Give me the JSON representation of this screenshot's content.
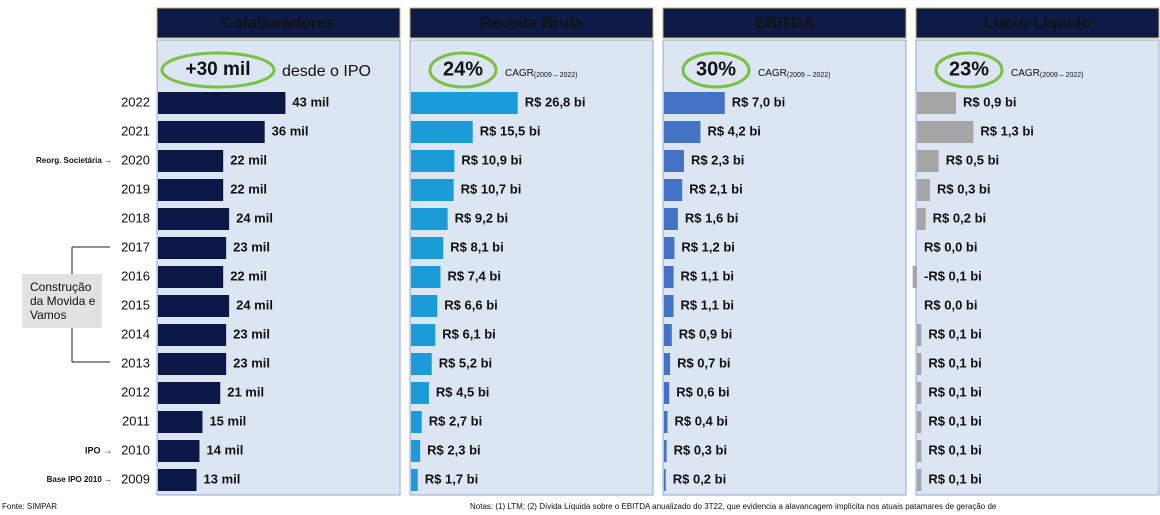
{
  "categories": [
    "2022",
    "2021",
    "2020",
    "2019",
    "2018",
    "2017",
    "2016",
    "2015",
    "2014",
    "2013",
    "2012",
    "2011",
    "2010",
    "2009"
  ],
  "chart_data": [
    {
      "type": "bar",
      "title": "Colaboradores",
      "highlight": "+30 mil",
      "highlight_note": "desde o IPO",
      "color": "#0b1846",
      "xlim": [
        0,
        82
      ],
      "values": [
        43,
        36,
        22,
        22,
        24,
        23,
        22,
        24,
        23,
        23,
        21,
        15,
        14,
        13
      ],
      "value_labels": [
        "43 mil",
        "36 mil",
        "22 mil",
        "22 mil",
        "24 mil",
        "23 mil",
        "22 mil",
        "24 mil",
        "23 mil",
        "23 mil",
        "21 mil",
        "15 mil",
        "14 mil",
        "13 mil"
      ]
    },
    {
      "type": "bar",
      "title": "Receita Bruta",
      "highlight": "24%",
      "highlight_note": "CAGR",
      "highlight_period": "(2009 – 2022)",
      "color": "#1b9bd7",
      "xlim": [
        0,
        61
      ],
      "values": [
        26.8,
        15.5,
        10.9,
        10.7,
        9.2,
        8.1,
        7.4,
        6.6,
        6.1,
        5.2,
        4.5,
        2.7,
        2.3,
        1.7
      ],
      "value_labels": [
        "R$ 26,8 bi",
        "R$ 15,5 bi",
        "R$ 10,9 bi",
        "R$ 10,7 bi",
        "R$ 9,2 bi",
        "R$ 8,1 bi",
        "R$ 7,4 bi",
        "R$ 6,6 bi",
        "R$ 6,1 bi",
        "R$ 5,2 bi",
        "R$ 4,5 bi",
        "R$ 2,7 bi",
        "R$ 2,3 bi",
        "R$ 1,7 bi"
      ]
    },
    {
      "type": "bar",
      "title": "EBITDA",
      "highlight": "30%",
      "highlight_note": "CAGR",
      "highlight_period": "(2009 – 2022)",
      "color": "#4472c4",
      "xlim": [
        0,
        28
      ],
      "values": [
        7.0,
        4.2,
        2.3,
        2.1,
        1.6,
        1.2,
        1.1,
        1.1,
        0.9,
        0.7,
        0.6,
        0.4,
        0.3,
        0.2
      ],
      "value_labels": [
        "R$ 7,0 bi",
        "R$ 4,2 bi",
        "R$ 2,3 bi",
        "R$ 2,1 bi",
        "R$ 1,6 bi",
        "R$ 1,2 bi",
        "R$ 1,1 bi",
        "R$ 1,1 bi",
        "R$ 0,9 bi",
        "R$ 0,7 bi",
        "R$ 0,6 bi",
        "R$ 0,4 bi",
        "R$ 0,3 bi",
        "R$ 0,2 bi"
      ]
    },
    {
      "type": "bar",
      "title": "Lucro Líquido",
      "highlight": "23%",
      "highlight_note": "CAGR",
      "highlight_period": "(2009 – 2022)",
      "color": "#a6a6a6",
      "xlim": [
        0,
        5.6
      ],
      "values": [
        0.9,
        1.3,
        0.5,
        0.3,
        0.2,
        0.0,
        -0.1,
        0.0,
        0.1,
        0.1,
        0.1,
        0.1,
        0.1,
        0.1
      ],
      "value_labels": [
        "R$ 0,9 bi",
        "R$ 1,3 bi",
        "R$ 0,5 bi",
        "R$ 0,3 bi",
        "R$ 0,2 bi",
        "R$ 0,0 bi",
        "-R$ 0,1 bi",
        "R$ 0,0 bi",
        "R$ 0,1 bi",
        "R$ 0,1 bi",
        "R$ 0,1 bi",
        "R$ 0,1 bi",
        "R$ 0,1 bi",
        "R$ 0,1 bi"
      ]
    }
  ],
  "annotations": {
    "reorg": "Reorg. Societária →",
    "ipo": "IPO →",
    "base": "Base IPO 2010 →",
    "construcao": [
      "Construção",
      "da Movida e",
      "Vamos"
    ]
  },
  "footer": {
    "source": "Fonte: SIMPAR",
    "notes": "Notas: (1) LTM; (2) Dívida Líquida sobre o EBITDA anualizado do 3T22, que evidencia a alavancagem implícita nos atuais patamares de geração de"
  }
}
